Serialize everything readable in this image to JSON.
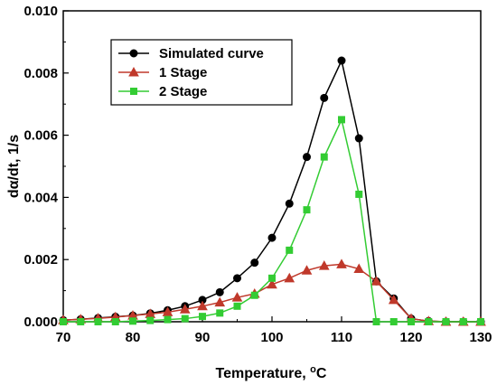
{
  "chart_data": {
    "type": "line",
    "xlabel": "Temperature, °C",
    "xlabel_main": "Temperature, ",
    "xlabel_sup": "o",
    "xlabel_unit": "C",
    "ylabel": "dα/dt, 1/s",
    "xlim": [
      70,
      130
    ],
    "ylim": [
      0,
      0.01
    ],
    "x_ticks": [
      "70",
      "80",
      "90",
      "100",
      "110",
      "120",
      "130"
    ],
    "y_ticks": [
      "0.000",
      "0.002",
      "0.004",
      "0.006",
      "0.008",
      "0.010"
    ],
    "grid": false,
    "legend_position": "top-left",
    "series": [
      {
        "name": "Simulated curve",
        "color": "#000000",
        "marker": "circle",
        "x": [
          70,
          72.5,
          75,
          77.5,
          80,
          82.5,
          85,
          87.5,
          90,
          92.5,
          95,
          97.5,
          100,
          102.5,
          105,
          107.5,
          110,
          112.5,
          115,
          117.5,
          120,
          122.5,
          125,
          127.5,
          130
        ],
        "y": [
          5e-05,
          8e-05,
          0.00012,
          0.00016,
          0.0002,
          0.00027,
          0.00037,
          0.0005,
          0.0007,
          0.00095,
          0.0014,
          0.0019,
          0.0027,
          0.0038,
          0.0053,
          0.0072,
          0.0084,
          0.0059,
          0.0013,
          0.00075,
          0.0001,
          2e-05,
          0.0,
          0.0,
          0.0
        ]
      },
      {
        "name": "1 Stage",
        "color": "#c0392b",
        "marker": "triangle",
        "x": [
          70,
          72.5,
          75,
          77.5,
          80,
          82.5,
          85,
          87.5,
          90,
          92.5,
          95,
          97.5,
          100,
          102.5,
          105,
          107.5,
          110,
          112.5,
          115,
          117.5,
          120,
          122.5,
          125,
          127.5,
          130
        ],
        "y": [
          5e-05,
          8e-05,
          0.00011,
          0.00015,
          0.0002,
          0.00025,
          0.00031,
          0.0004,
          0.0005,
          0.00062,
          0.00078,
          0.0009,
          0.0012,
          0.0014,
          0.00165,
          0.0018,
          0.00185,
          0.0017,
          0.0013,
          0.0007,
          0.0001,
          2e-05,
          0.0,
          0.0,
          0.0
        ]
      },
      {
        "name": "2 Stage",
        "color": "#33cc33",
        "marker": "square",
        "x": [
          70,
          72.5,
          75,
          77.5,
          80,
          82.5,
          85,
          87.5,
          90,
          92.5,
          95,
          97.5,
          100,
          102.5,
          105,
          107.5,
          110,
          112.5,
          115,
          117.5,
          120,
          122.5,
          125,
          127.5,
          130
        ],
        "y": [
          0.0,
          0.0,
          0.0,
          0.0,
          2e-05,
          4e-05,
          7e-05,
          0.0001,
          0.00017,
          0.00028,
          0.0005,
          0.00085,
          0.0014,
          0.0023,
          0.0036,
          0.0053,
          0.0065,
          0.0041,
          0.0,
          0.0,
          0.0,
          0.0,
          0.0,
          0.0,
          0.0
        ]
      }
    ]
  }
}
